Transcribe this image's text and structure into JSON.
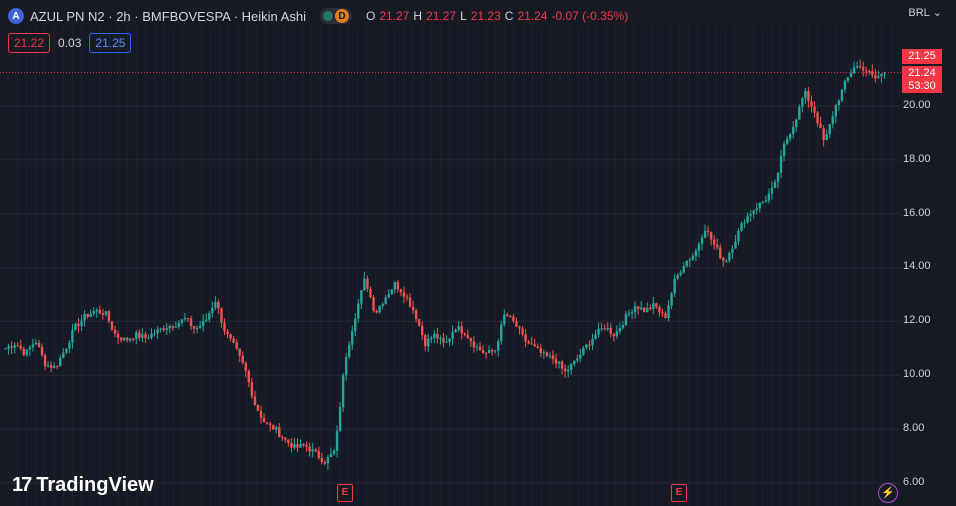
{
  "header": {
    "logo_letter": "A",
    "title": "AZUL PN N2 · 2h · BMFBOVESPA · Heikin Ashi",
    "badge_letter": "D",
    "ohlc": {
      "o_label": "O",
      "o": "21.27",
      "h_label": "H",
      "h": "21.27",
      "l_label": "L",
      "l": "21.23",
      "c_label": "C",
      "c": "21.24",
      "change": "-0.07 (-0.35%)"
    }
  },
  "prices": {
    "bid": "21.22",
    "spread": "0.03",
    "ask": "21.25"
  },
  "currency": "BRL",
  "price_axis": [
    "20.00",
    "18.00",
    "16.00",
    "14.00",
    "12.00",
    "10.00",
    "8.00",
    "6.00"
  ],
  "price_labels": {
    "top": "21.25",
    "last": "21.24",
    "countdown": "53:30"
  },
  "branding": "TradingView",
  "event_markers": [
    "E",
    "E"
  ],
  "colors": {
    "up": "#26a69a",
    "down": "#ef5350",
    "background": "#161a25",
    "accent": "#f23645"
  },
  "chart_data": {
    "type": "candlestick",
    "style": "Heikin Ashi",
    "symbol": "AZUL PN N2",
    "interval": "2h",
    "ylim": [
      6,
      21.8
    ],
    "last_price": 21.24,
    "close_path": [
      11.0,
      11.2,
      10.8,
      11.3,
      10.4,
      10.3,
      11.0,
      11.8,
      12.2,
      12.4,
      12.3,
      11.5,
      11.3,
      11.5,
      11.4,
      11.6,
      11.8,
      11.9,
      12.1,
      11.7,
      12.0,
      12.8,
      11.6,
      11.0,
      10.2,
      8.9,
      8.2,
      8.0,
      7.6,
      7.3,
      7.4,
      7.1,
      6.8,
      7.2,
      10.6,
      12.2,
      13.6,
      12.3,
      12.9,
      13.4,
      13.0,
      12.3,
      11.2,
      11.5,
      11.1,
      11.8,
      11.6,
      11.1,
      10.8,
      10.9,
      12.3,
      11.9,
      11.3,
      11.0,
      10.7,
      10.6,
      10.1,
      10.5,
      11.0,
      11.5,
      11.8,
      11.5,
      12.1,
      12.6,
      12.4,
      12.6,
      12.1,
      13.5,
      14.2,
      14.5,
      15.5,
      14.8,
      14.2,
      15.0,
      15.8,
      16.2,
      16.5,
      17.0,
      18.6,
      19.4,
      20.5,
      19.8,
      18.6,
      19.9,
      20.8,
      21.5,
      21.4,
      21.0,
      21.24
    ]
  }
}
